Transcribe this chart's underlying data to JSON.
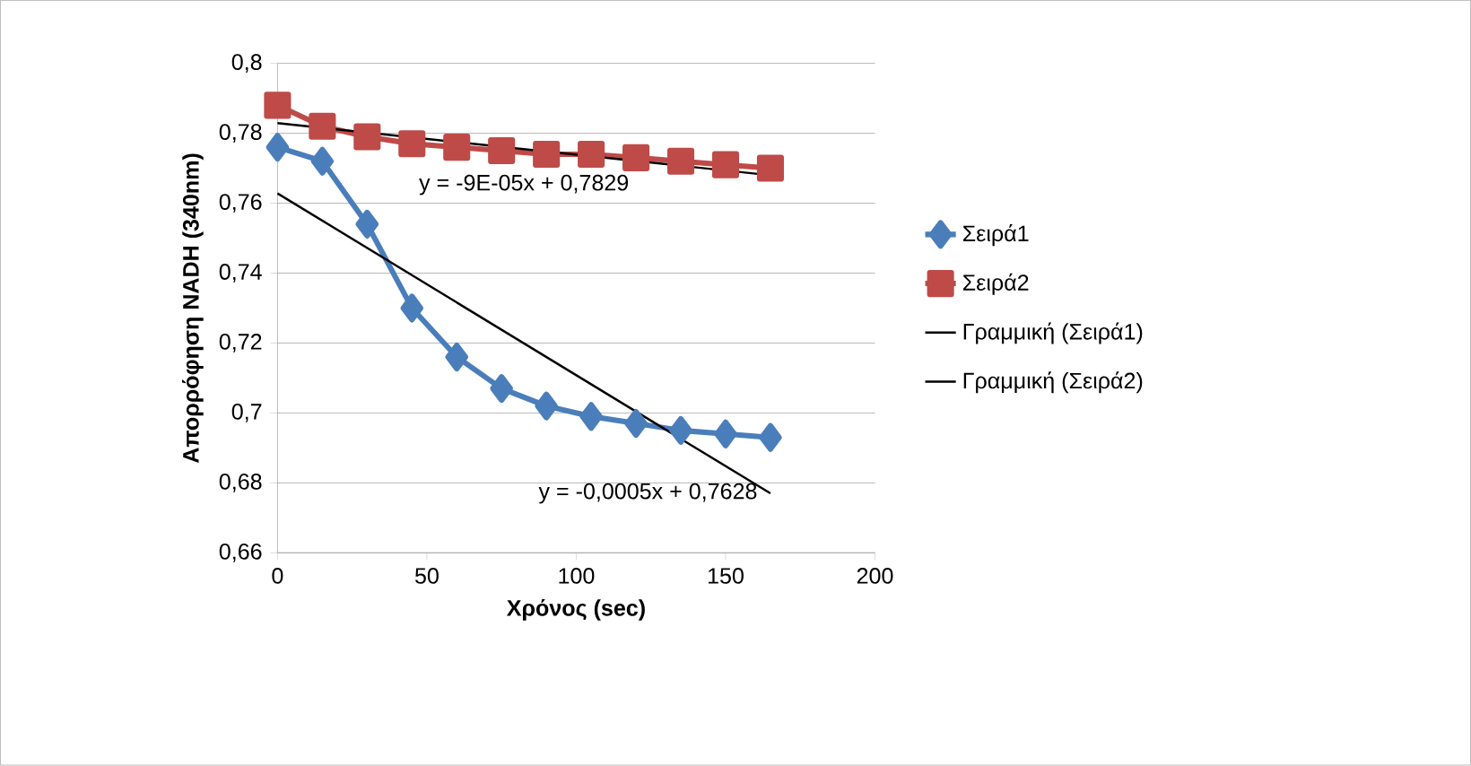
{
  "chart_data": {
    "type": "line",
    "xlabel": "Χρόνος (sec)",
    "ylabel": "Απορρόφηση NADH (340nm)",
    "x": [
      0,
      15,
      30,
      45,
      60,
      75,
      90,
      105,
      120,
      135,
      150,
      165
    ],
    "series": [
      {
        "name": "Σειρά1",
        "color": "#4a7ebb",
        "marker": "diamond",
        "values": [
          0.776,
          0.772,
          0.754,
          0.73,
          0.716,
          0.707,
          0.702,
          0.699,
          0.697,
          0.695,
          0.694,
          0.693
        ]
      },
      {
        "name": "Σειρά2",
        "color": "#be4b48",
        "marker": "square",
        "values": [
          0.788,
          0.782,
          0.779,
          0.777,
          0.776,
          0.775,
          0.774,
          0.774,
          0.773,
          0.772,
          0.771,
          0.77
        ]
      },
      {
        "name": "Γραμμική (Σειρά1)",
        "type": "line",
        "color": "#000000",
        "marker": "none",
        "values": [
          0.7628,
          null,
          null,
          null,
          null,
          null,
          null,
          null,
          null,
          null,
          null,
          0.677
        ]
      },
      {
        "name": "Γραμμική (Σειρά2)",
        "type": "line",
        "color": "#000000",
        "marker": "none",
        "values": [
          0.7829,
          null,
          null,
          null,
          null,
          null,
          null,
          null,
          null,
          null,
          null,
          0.768
        ]
      }
    ],
    "xlim": [
      0,
      200
    ],
    "xticks": [
      0,
      50,
      100,
      150,
      200
    ],
    "ylim": [
      0.66,
      0.8
    ],
    "yticks": [
      {
        "value": 0.66,
        "label": "0,66"
      },
      {
        "value": 0.68,
        "label": "0,68"
      },
      {
        "value": 0.7,
        "label": "0,7"
      },
      {
        "value": 0.72,
        "label": "0,72"
      },
      {
        "value": 0.74,
        "label": "0,74"
      },
      {
        "value": 0.76,
        "label": "0,76"
      },
      {
        "value": 0.78,
        "label": "0,78"
      },
      {
        "value": 0.8,
        "label": "0,8"
      }
    ],
    "grid": "y",
    "legend": "right",
    "annotations": [
      "y = -9E-05x + 0,7829",
      "y = -0,0005x + 0,7628"
    ]
  }
}
